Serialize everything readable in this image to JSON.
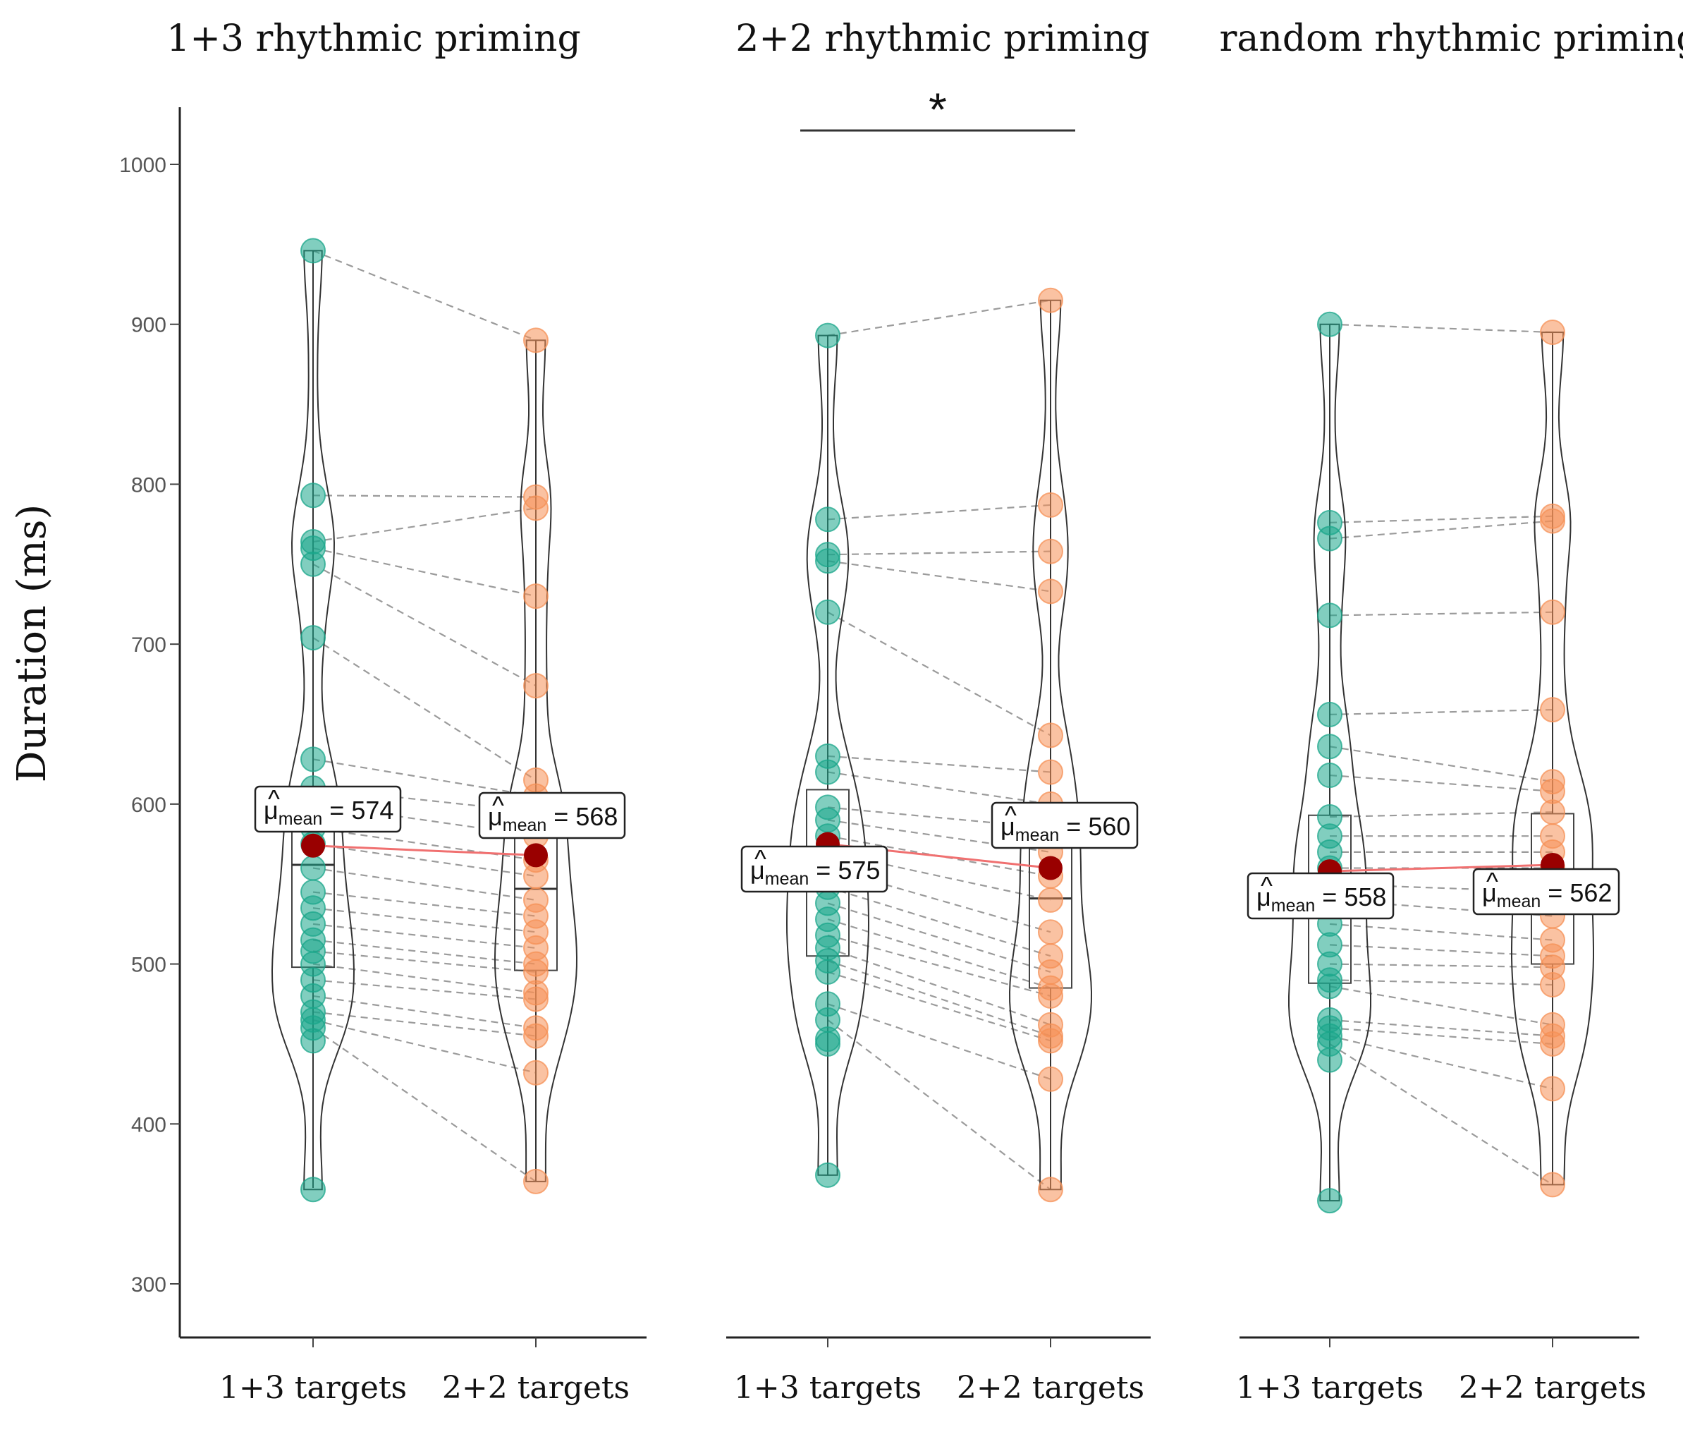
{
  "chart_data": {
    "type": "violin-paired-scatter",
    "ylabel": "Duration (ms)",
    "ylim": [
      290,
      1035
    ],
    "yticks": [
      300,
      400,
      500,
      600,
      700,
      800,
      900,
      1000
    ],
    "colors": {
      "target_13": "#1aa58a",
      "target_22": "#f59055",
      "mean_point": "#990000",
      "mean_line": "#f07070",
      "pair_line": "#8a8a8a",
      "outline": "#333333"
    },
    "panels": [
      {
        "title": "1+3 rhythmic priming",
        "categories": [
          "1+3 targets",
          "2+2 targets"
        ],
        "significance": "",
        "series": [
          {
            "name": "1+3 targets",
            "mean": 574,
            "mean_label": "574",
            "mean_prefix": "μ",
            "mean_sub": "mean",
            "box": {
              "q1": 498,
              "median": 562,
              "q3": 605,
              "whisker_low": 360,
              "whisker_high": 946
            },
            "values": [
              946,
              793,
              764,
              760,
              750,
              704,
              628,
              610,
              600,
              585,
              575,
              560,
              545,
              535,
              525,
              515,
              508,
              500,
              490,
              480,
              470,
              465,
              460,
              452,
              359
            ]
          },
          {
            "name": "2+2 targets",
            "mean": 568,
            "mean_label": "568",
            "mean_prefix": "μ",
            "mean_sub": "mean",
            "box": {
              "q1": 496,
              "median": 547,
              "q3": 600,
              "whisker_low": 364,
              "whisker_high": 890
            },
            "values": [
              890,
              792,
              785,
              730,
              674,
              615,
              605,
              595,
              580,
              565,
              555,
              540,
              530,
              520,
              510,
              500,
              495,
              482,
              478,
              460,
              455,
              432,
              364
            ]
          }
        ]
      },
      {
        "title": "2+2 rhythmic priming",
        "categories": [
          "1+3 targets",
          "2+2 targets"
        ],
        "significance": "*",
        "series": [
          {
            "name": "1+3 targets",
            "mean": 575,
            "mean_label": "575",
            "mean_prefix": "μ",
            "mean_sub": "mean",
            "box": {
              "q1": 505,
              "median": 568,
              "q3": 609,
              "whisker_low": 368,
              "whisker_high": 893
            },
            "values": [
              893,
              778,
              756,
              752,
              720,
              630,
              620,
              598,
              590,
              580,
              570,
              560,
              548,
              538,
              528,
              518,
              510,
              502,
              495,
              475,
              465,
              453,
              450,
              368
            ]
          },
          {
            "name": "2+2 targets",
            "mean": 560,
            "mean_label": "560",
            "mean_prefix": "μ",
            "mean_sub": "mean",
            "box": {
              "q1": 485,
              "median": 541,
              "q3": 600,
              "whisker_low": 359,
              "whisker_high": 915
            },
            "values": [
              915,
              787,
              758,
              733,
              643,
              620,
              600,
              585,
              570,
              555,
              540,
              520,
              505,
              495,
              485,
              480,
              462,
              455,
              452,
              428,
              359
            ]
          }
        ]
      },
      {
        "title": "random rhythmic priming",
        "categories": [
          "1+3 targets",
          "2+2 targets"
        ],
        "significance": "",
        "series": [
          {
            "name": "1+3 targets",
            "mean": 558,
            "mean_label": "558",
            "mean_prefix": "μ",
            "mean_sub": "mean",
            "box": {
              "q1": 488,
              "median": 555,
              "q3": 593,
              "whisker_low": 352,
              "whisker_high": 900
            },
            "values": [
              900,
              776,
              766,
              718,
              656,
              636,
              618,
              592,
              580,
              570,
              560,
              550,
              540,
              525,
              512,
              500,
              490,
              486,
              465,
              460,
              455,
              450,
              440,
              352
            ]
          },
          {
            "name": "2+2 targets",
            "mean": 562,
            "mean_label": "562",
            "mean_prefix": "μ",
            "mean_sub": "mean",
            "box": {
              "q1": 500,
              "median": 555,
              "q3": 594,
              "whisker_low": 362,
              "whisker_high": 895
            },
            "values": [
              895,
              780,
              777,
              720,
              659,
              614,
              608,
              595,
              580,
              570,
              560,
              545,
              530,
              515,
              505,
              498,
              487,
              462,
              455,
              450,
              422,
              362
            ]
          }
        ]
      }
    ]
  }
}
